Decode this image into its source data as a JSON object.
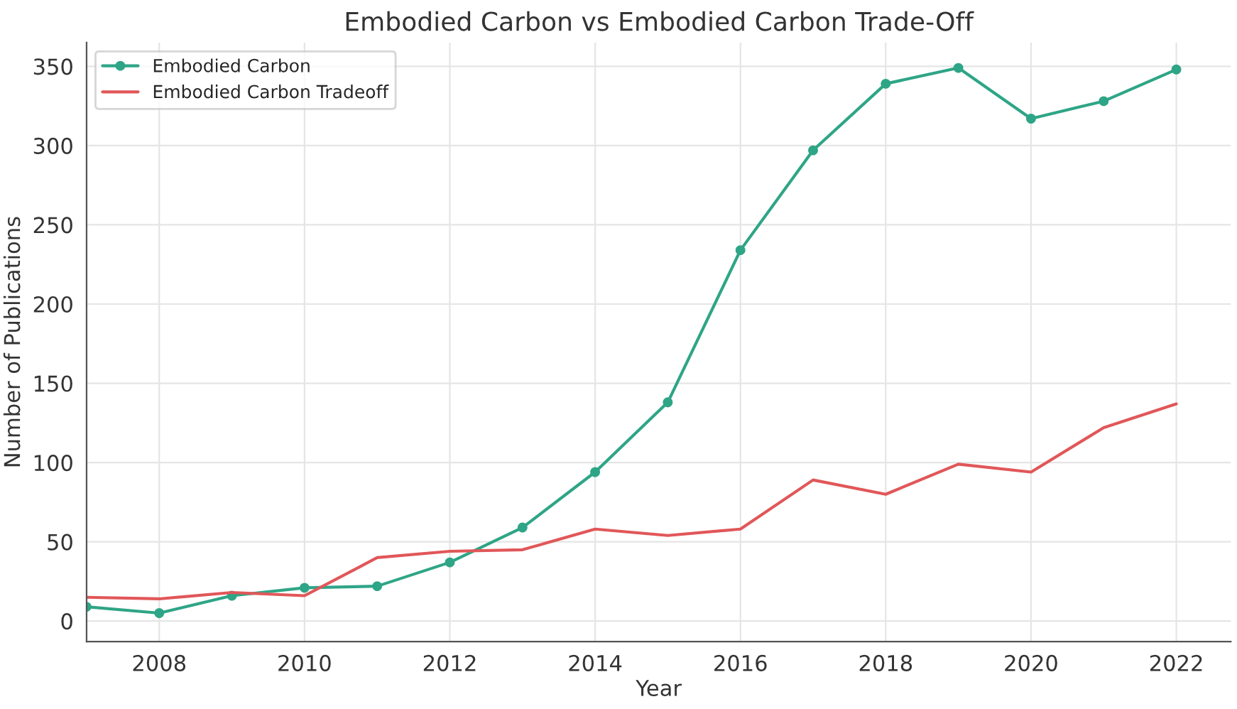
{
  "chart_data": {
    "type": "line",
    "title": "Embodied Carbon vs Embodied Carbon Trade-Off",
    "xlabel": "Year",
    "ylabel": "Number of Publications",
    "x": [
      2007,
      2008,
      2009,
      2010,
      2011,
      2012,
      2013,
      2014,
      2015,
      2016,
      2017,
      2018,
      2019,
      2020,
      2021,
      2022
    ],
    "series": [
      {
        "name": "Embodied Carbon",
        "color": "#2ea586",
        "marker": "circle",
        "values": [
          9,
          5,
          16,
          21,
          22,
          37,
          59,
          94,
          138,
          234,
          297,
          339,
          349,
          317,
          328,
          348
        ]
      },
      {
        "name": "Embodied Carbon Tradeoff",
        "color": "#e15759",
        "marker": "none",
        "values": [
          15,
          14,
          18,
          16,
          40,
          44,
          45,
          58,
          54,
          58,
          89,
          80,
          99,
          94,
          122,
          137
        ]
      }
    ],
    "xlim": [
      2007,
      2022.75
    ],
    "xticks": [
      2008,
      2010,
      2012,
      2014,
      2016,
      2018,
      2020,
      2022
    ],
    "ylim": [
      -13,
      365
    ],
    "yticks": [
      0,
      50,
      100,
      150,
      200,
      250,
      300,
      350
    ],
    "grid": true,
    "legend": "top left",
    "line_style": "solid"
  }
}
